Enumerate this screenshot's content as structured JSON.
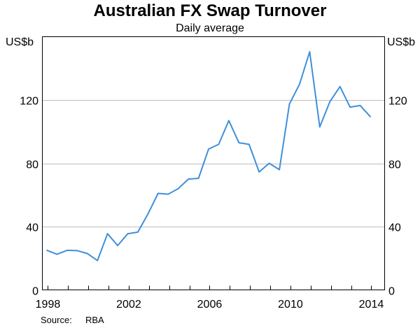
{
  "chart_data": {
    "type": "line",
    "title": "Australian FX Swap Turnover",
    "subtitle": "Daily average",
    "ylabel_left": "US$b",
    "ylabel_right": "US$b",
    "x_ticks": [
      "1998",
      "2002",
      "2006",
      "2010",
      "2014"
    ],
    "y_ticks": [
      "0",
      "40",
      "80",
      "120"
    ],
    "xlim": [
      1998,
      2014
    ],
    "ylim": [
      0,
      160
    ],
    "grid": "horizontal",
    "series": [
      {
        "color": "#3f8fdc",
        "points": [
          {
            "x": 1997.95,
            "y": 25
          },
          {
            "x": 1998.45,
            "y": 22.5
          },
          {
            "x": 1998.95,
            "y": 25
          },
          {
            "x": 1999.45,
            "y": 24.8
          },
          {
            "x": 1999.95,
            "y": 23
          },
          {
            "x": 2000.45,
            "y": 18.5
          },
          {
            "x": 2000.95,
            "y": 35.5
          },
          {
            "x": 2001.45,
            "y": 28
          },
          {
            "x": 2001.95,
            "y": 35.5
          },
          {
            "x": 2002.45,
            "y": 36.5
          },
          {
            "x": 2002.95,
            "y": 48
          },
          {
            "x": 2003.45,
            "y": 61
          },
          {
            "x": 2003.95,
            "y": 60.5
          },
          {
            "x": 2004.45,
            "y": 64
          },
          {
            "x": 2004.95,
            "y": 70
          },
          {
            "x": 2005.45,
            "y": 70.5
          },
          {
            "x": 2005.95,
            "y": 89
          },
          {
            "x": 2006.45,
            "y": 92
          },
          {
            "x": 2006.95,
            "y": 107
          },
          {
            "x": 2007.45,
            "y": 93
          },
          {
            "x": 2007.95,
            "y": 92
          },
          {
            "x": 2008.45,
            "y": 74.5
          },
          {
            "x": 2008.95,
            "y": 80
          },
          {
            "x": 2009.45,
            "y": 76
          },
          {
            "x": 2009.95,
            "y": 117.5
          },
          {
            "x": 2010.45,
            "y": 130
          },
          {
            "x": 2010.95,
            "y": 150.5
          },
          {
            "x": 2011.45,
            "y": 103
          },
          {
            "x": 2011.95,
            "y": 119
          },
          {
            "x": 2012.45,
            "y": 128.5
          },
          {
            "x": 2012.95,
            "y": 115.5
          },
          {
            "x": 2013.45,
            "y": 116.5
          },
          {
            "x": 2013.95,
            "y": 109.5
          }
        ]
      }
    ]
  },
  "source": {
    "label": "Source:",
    "value": "RBA"
  }
}
